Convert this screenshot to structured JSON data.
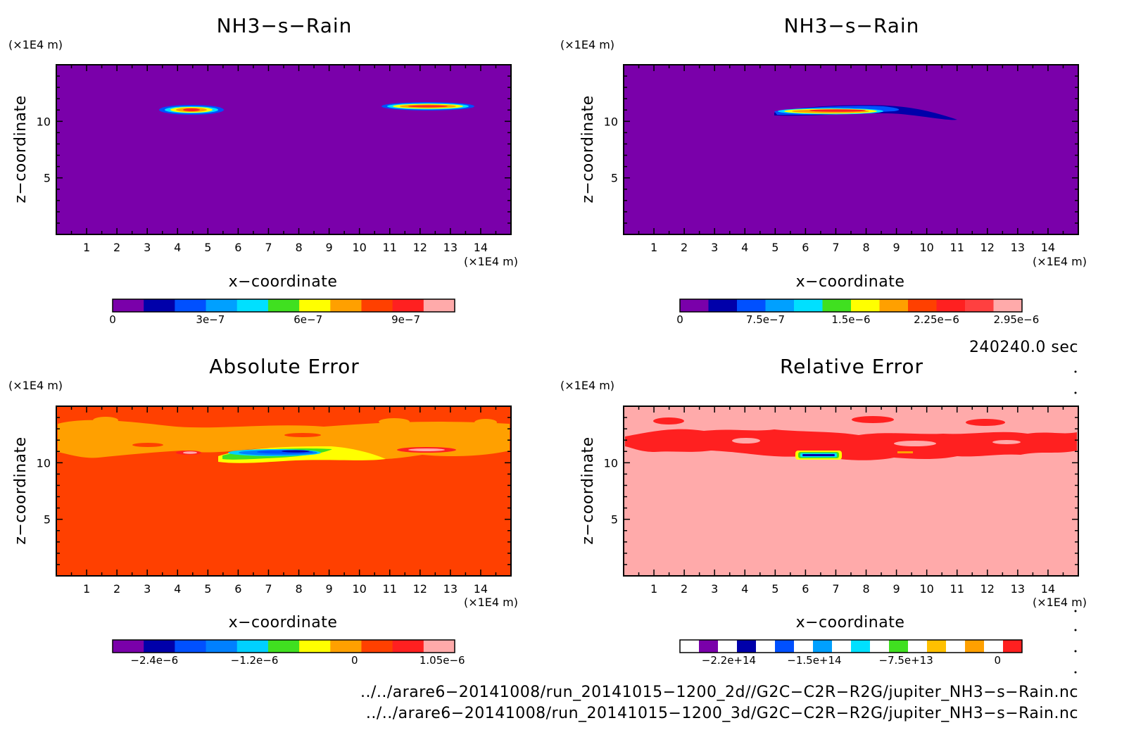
{
  "chart_data": [
    {
      "type": "heatmap",
      "title": "NH3−s−Rain",
      "xlabel": "x−coordinate",
      "ylabel": "z−coordinate",
      "x_unit": "(×1E4 m)",
      "y_unit": "(×1E4 m)",
      "xlim": [
        0,
        15
      ],
      "ylim": [
        0,
        15
      ],
      "x_ticks": [
        "1",
        "2",
        "3",
        "4",
        "5",
        "6",
        "7",
        "8",
        "9",
        "10",
        "11",
        "12",
        "13",
        "14"
      ],
      "y_ticks": [
        "5",
        "10"
      ],
      "background_color": "#7a00aa",
      "colorbar": {
        "colors": [
          "#7a00aa",
          "#0000aa",
          "#0050ff",
          "#00a0ff",
          "#00e0ff",
          "#40e020",
          "#ffff00",
          "#ffa000",
          "#ff4000",
          "#ff2020",
          "#ffaaaa"
        ],
        "labels": [
          "0",
          "3e−7",
          "6e−7",
          "9e−7"
        ],
        "label_values": [
          0,
          3e-07,
          6e-07,
          9e-07
        ],
        "range": [
          0,
          1.05e-06
        ]
      },
      "features": [
        {
          "x_center": 4.5,
          "z": 11.0,
          "width": 2.1,
          "peak": 9.5e-07
        },
        {
          "x_center": 12.3,
          "z": 11.3,
          "width": 3.0,
          "peak": 1e-06
        }
      ]
    },
    {
      "type": "heatmap",
      "title": "NH3−s−Rain",
      "xlabel": "x−coordinate",
      "ylabel": "z−coordinate",
      "x_unit": "(×1E4 m)",
      "y_unit": "(×1E4 m)",
      "xlim": [
        0,
        15
      ],
      "ylim": [
        0,
        15
      ],
      "x_ticks": [
        "1",
        "2",
        "3",
        "4",
        "5",
        "6",
        "7",
        "8",
        "9",
        "10",
        "11",
        "12",
        "13",
        "14"
      ],
      "y_ticks": [
        "5",
        "10"
      ],
      "background_color": "#7a00aa",
      "colorbar": {
        "colors": [
          "#7a00aa",
          "#0000aa",
          "#0050ff",
          "#00a0ff",
          "#00e0ff",
          "#40e020",
          "#ffff00",
          "#ffa000",
          "#ff4000",
          "#ff2020",
          "#ff4040",
          "#ffaaaa"
        ],
        "labels": [
          "0",
          "7.5e−7",
          "1.5e−6",
          "2.25e−6",
          "2.95e−6"
        ],
        "label_values": [
          0,
          7.5e-07,
          1.5e-06,
          2.25e-06,
          2.95e-06
        ],
        "range": [
          0,
          3e-06
        ]
      },
      "features": [
        {
          "x_center": 7.5,
          "z": 10.8,
          "width": 5.0,
          "peak": 2.9e-06
        }
      ]
    },
    {
      "type": "heatmap",
      "title": "Absolute Error",
      "xlabel": "x−coordinate",
      "ylabel": "z−coordinate",
      "x_unit": "(×1E4 m)",
      "y_unit": "(×1E4 m)",
      "xlim": [
        0,
        15
      ],
      "ylim": [
        0,
        15
      ],
      "x_ticks": [
        "1",
        "2",
        "3",
        "4",
        "5",
        "6",
        "7",
        "8",
        "9",
        "10",
        "11",
        "12",
        "13",
        "14"
      ],
      "y_ticks": [
        "5",
        "10"
      ],
      "background_color": "#ff4000",
      "colorbar": {
        "colors": [
          "#7a00aa",
          "#0000aa",
          "#0050ff",
          "#0080ff",
          "#00d0ff",
          "#40e020",
          "#ffff00",
          "#ffa000",
          "#ff4000",
          "#ff2020",
          "#ffaaaa"
        ],
        "labels": [
          "−2.4e−6",
          "−1.2e−6",
          "0",
          "1.05e−6"
        ],
        "label_values": [
          -2.4e-06,
          -1.2e-06,
          0,
          1.05e-06
        ],
        "range": [
          -2.9e-06,
          1.2e-06
        ]
      }
    },
    {
      "type": "heatmap",
      "title": "Relative Error",
      "xlabel": "x−coordinate",
      "ylabel": "z−coordinate",
      "x_unit": "(×1E4 m)",
      "y_unit": "(×1E4 m)",
      "xlim": [
        0,
        15
      ],
      "ylim": [
        0,
        15
      ],
      "x_ticks": [
        "1",
        "2",
        "3",
        "4",
        "5",
        "6",
        "7",
        "8",
        "9",
        "10",
        "11",
        "12",
        "13",
        "14"
      ],
      "y_ticks": [
        "5",
        "10"
      ],
      "background_color": "#ffaaaa",
      "colorbar": {
        "colors": [
          "#ffffff",
          "#7a00aa",
          "#ffffff",
          "#0000aa",
          "#ffffff",
          "#0050ff",
          "#ffffff",
          "#00a0ff",
          "#ffffff",
          "#00e0ff",
          "#ffffff",
          "#40e020",
          "#ffffff",
          "#ffc000",
          "#ffffff",
          "#ffa000",
          "#ffffff",
          "#ff2020"
        ],
        "labels": [
          "−2.2e+14",
          "−1.5e+14",
          "−7.5e+13",
          "0"
        ],
        "label_values": [
          -220000000000000.0,
          -150000000000000.0,
          -75000000000000.0,
          0
        ],
        "range": [
          -260000000000000.0,
          20000000000000.0
        ]
      }
    }
  ],
  "footer": {
    "time": "240240.0 sec",
    "file_2d": "../../arare6−20141008/run_20141015−1200_2d//G2C−C2R−R2G/jupiter_NH3−s−Rain.nc",
    "file_3d": "../../arare6−20141008/run_20141015−1200_3d/G2C−C2R−R2G/jupiter_NH3−s−Rain.nc"
  }
}
